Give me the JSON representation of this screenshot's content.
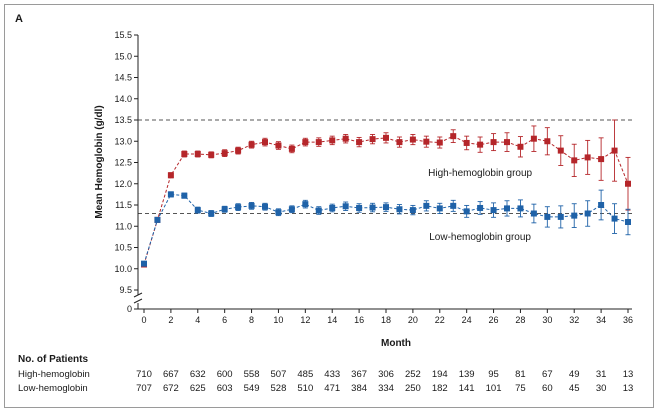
{
  "panel_letter": "A",
  "chart_data": {
    "type": "line",
    "title": "",
    "xlabel": "Month",
    "ylabel": "Mean Hemoglobin (g/dl)",
    "xlim": [
      0,
      36
    ],
    "ylim": [
      9.5,
      15.5
    ],
    "y_axis_break": true,
    "y_axis_zero_label": "0",
    "xticks": [
      0,
      2,
      4,
      6,
      8,
      10,
      12,
      14,
      16,
      18,
      20,
      22,
      24,
      26,
      28,
      30,
      32,
      34,
      36
    ],
    "yticks": [
      9.5,
      10.0,
      10.5,
      11.0,
      11.5,
      12.0,
      12.5,
      13.0,
      13.5,
      14.0,
      14.5,
      15.0,
      15.5
    ],
    "ytick_labels": [
      "9.5",
      "10.0",
      "10.5",
      "11.0",
      "11.5",
      "12.0",
      "12.5",
      "13.0",
      "13.5",
      "14.0",
      "14.5",
      "15.0",
      "15.5"
    ],
    "reference_lines": [
      13.5,
      11.3
    ],
    "grid": false,
    "series": [
      {
        "name": "High-hemoglobin group",
        "color": "#b5262a",
        "marker": "square",
        "x": [
          0,
          1,
          2,
          3,
          4,
          5,
          6,
          7,
          8,
          9,
          10,
          11,
          12,
          13,
          14,
          15,
          16,
          17,
          18,
          19,
          20,
          21,
          22,
          23,
          24,
          25,
          26,
          27,
          28,
          29,
          30,
          31,
          32,
          33,
          34,
          35,
          36
        ],
        "values": [
          10.1,
          11.15,
          12.2,
          12.7,
          12.7,
          12.68,
          12.72,
          12.78,
          12.92,
          12.98,
          12.9,
          12.82,
          12.98,
          12.98,
          13.02,
          13.06,
          12.98,
          13.05,
          13.08,
          12.98,
          13.04,
          12.99,
          12.97,
          13.12,
          12.96,
          12.92,
          12.98,
          12.98,
          12.87,
          13.06,
          13.0,
          12.78,
          12.55,
          12.62,
          12.58,
          12.78,
          12.0
        ],
        "error": [
          0.05,
          0.05,
          0.06,
          0.07,
          0.07,
          0.07,
          0.08,
          0.08,
          0.08,
          0.09,
          0.09,
          0.09,
          0.09,
          0.1,
          0.1,
          0.1,
          0.11,
          0.11,
          0.12,
          0.12,
          0.12,
          0.13,
          0.13,
          0.15,
          0.16,
          0.18,
          0.2,
          0.22,
          0.24,
          0.3,
          0.32,
          0.35,
          0.38,
          0.4,
          0.5,
          0.72,
          0.62
        ]
      },
      {
        "name": "Low-hemoglobin group",
        "color": "#1f62a8",
        "marker": "square",
        "x": [
          0,
          1,
          2,
          3,
          4,
          5,
          6,
          7,
          8,
          9,
          10,
          11,
          12,
          13,
          14,
          15,
          16,
          17,
          18,
          19,
          20,
          21,
          22,
          23,
          24,
          25,
          26,
          27,
          28,
          29,
          30,
          31,
          32,
          33,
          34,
          35,
          36
        ],
        "values": [
          10.12,
          11.15,
          11.75,
          11.72,
          11.38,
          11.3,
          11.4,
          11.45,
          11.48,
          11.46,
          11.33,
          11.4,
          11.52,
          11.37,
          11.43,
          11.47,
          11.43,
          11.44,
          11.45,
          11.4,
          11.38,
          11.48,
          11.42,
          11.48,
          11.35,
          11.43,
          11.38,
          11.42,
          11.42,
          11.3,
          11.22,
          11.22,
          11.25,
          11.3,
          11.5,
          11.18,
          11.1
        ],
        "error": [
          0.05,
          0.05,
          0.06,
          0.06,
          0.07,
          0.07,
          0.07,
          0.08,
          0.08,
          0.08,
          0.08,
          0.08,
          0.09,
          0.09,
          0.09,
          0.1,
          0.1,
          0.1,
          0.1,
          0.11,
          0.11,
          0.12,
          0.12,
          0.13,
          0.14,
          0.15,
          0.17,
          0.18,
          0.2,
          0.22,
          0.24,
          0.26,
          0.28,
          0.3,
          0.35,
          0.35,
          0.3
        ]
      }
    ],
    "annotations": [
      {
        "text": "High-hemoglobin group",
        "x": 25,
        "y": 12.25
      },
      {
        "text": "Low-hemoglobin group",
        "x": 25,
        "y": 10.75
      }
    ]
  },
  "patients_table": {
    "heading": "No. of Patients",
    "months": [
      0,
      2,
      4,
      6,
      8,
      10,
      12,
      14,
      16,
      18,
      20,
      22,
      24,
      26,
      28,
      30,
      32,
      34,
      36
    ],
    "rows": [
      {
        "label": "High-hemoglobin",
        "counts": [
          "710",
          "667",
          "632",
          "600",
          "558",
          "507",
          "485",
          "433",
          "367",
          "306",
          "252",
          "194",
          "139",
          "95",
          "81",
          "67",
          "49",
          "31",
          "13"
        ]
      },
      {
        "label": "Low-hemoglobin",
        "counts": [
          "707",
          "672",
          "625",
          "603",
          "549",
          "528",
          "510",
          "471",
          "384",
          "334",
          "250",
          "182",
          "141",
          "101",
          "75",
          "60",
          "45",
          "30",
          "13"
        ]
      }
    ]
  }
}
